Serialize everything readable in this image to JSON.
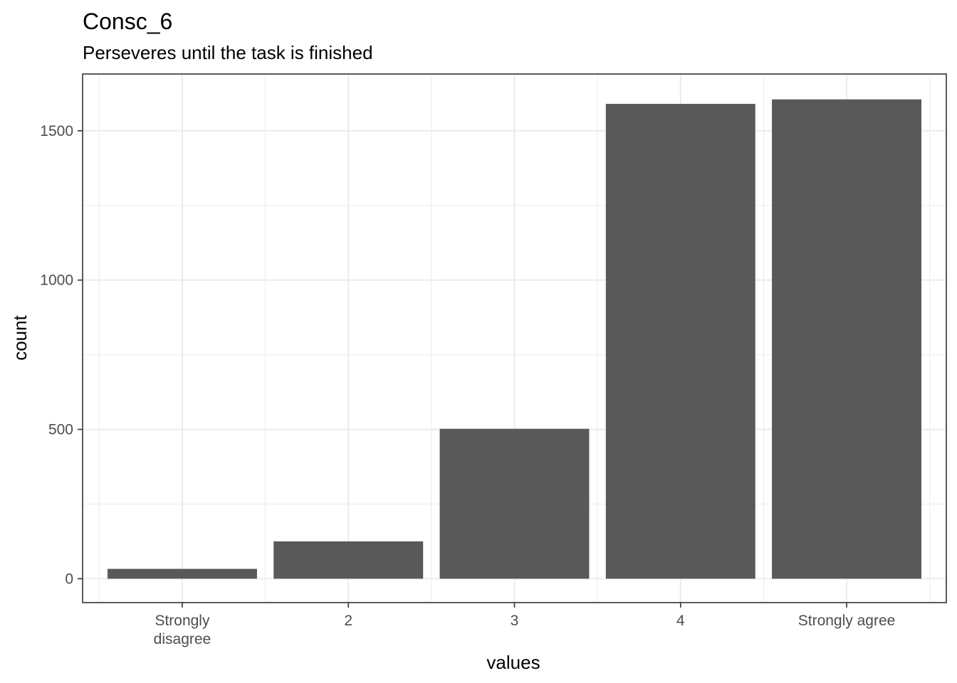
{
  "chart_data": {
    "type": "bar",
    "title": "Consc_6",
    "subtitle": "Perseveres until the task is finished",
    "xlabel": "values",
    "ylabel": "count",
    "categories": [
      [
        "Strongly",
        "disagree"
      ],
      [
        "2"
      ],
      [
        "3"
      ],
      [
        "4"
      ],
      [
        "Strongly agree"
      ]
    ],
    "values": [
      33,
      125,
      502,
      1590,
      1605
    ],
    "ylim": [
      -80,
      1690
    ],
    "yticks": [
      0,
      500,
      1000,
      1500
    ],
    "ytick_labels": [
      "0",
      "500",
      "1000",
      "1500"
    ],
    "grid": true,
    "bar_color": "#595959",
    "grid_color": "#ebebeb",
    "panel_border_color": "#333333"
  }
}
